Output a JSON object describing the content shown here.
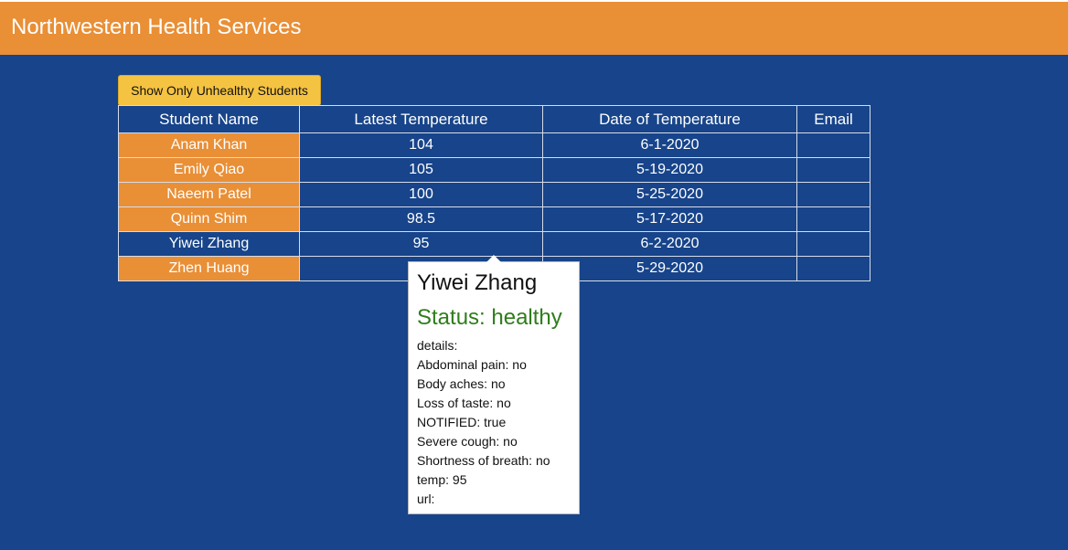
{
  "app": {
    "title": "Northwestern Health Services"
  },
  "colors": {
    "header_bg": "#e98f36",
    "page_bg": "#17448a",
    "button_bg": "#f5c342",
    "unhealthy_bg": "#e98f36",
    "status_healthy": "#2f7d1b"
  },
  "toolbar": {
    "filter_label": "Show Only Unhealthy Students"
  },
  "table": {
    "headers": [
      "Student Name",
      "Latest Temperature",
      "Date of Temperature",
      "Email"
    ],
    "rows": [
      {
        "name": "Anam Khan",
        "temperature": "104",
        "date": "6-1-2020",
        "email": "",
        "status": "unhealthy"
      },
      {
        "name": "Emily Qiao",
        "temperature": "105",
        "date": "5-19-2020",
        "email": "",
        "status": "unhealthy"
      },
      {
        "name": "Naeem Patel",
        "temperature": "100",
        "date": "5-25-2020",
        "email": "",
        "status": "unhealthy"
      },
      {
        "name": "Quinn Shim",
        "temperature": "98.5",
        "date": "5-17-2020",
        "email": "",
        "status": "unhealthy"
      },
      {
        "name": "Yiwei Zhang",
        "temperature": "95",
        "date": "6-2-2020",
        "email": "",
        "status": "healthy"
      },
      {
        "name": "Zhen Huang",
        "temperature": "",
        "date": "5-29-2020",
        "email": "",
        "status": "unhealthy"
      }
    ]
  },
  "popover": {
    "name": "Yiwei Zhang",
    "status": "Status: healthy",
    "details": [
      "details:",
      "Abdominal pain: no",
      "Body aches: no",
      "Loss of taste: no",
      "NOTIFIED: true",
      "Severe cough: no",
      "Shortness of breath: no",
      "temp: 95",
      "url:"
    ]
  }
}
